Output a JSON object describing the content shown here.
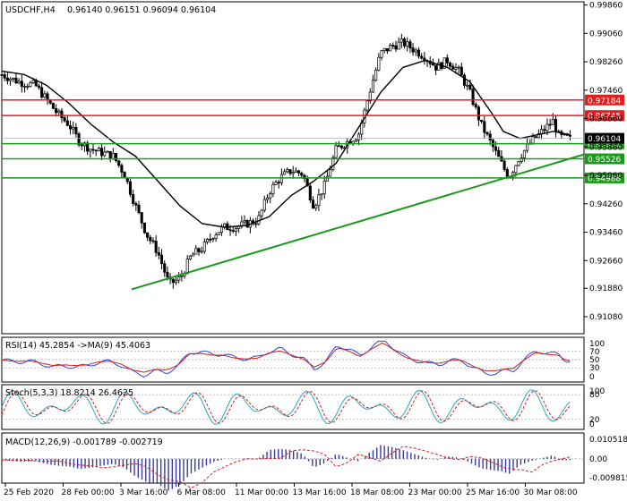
{
  "chart_data": {
    "type": "candlestick",
    "symbol_label": "USDCHF,H4",
    "ohlc_label": "0.96140 0.96151 0.96094 0.96104",
    "price_axis": {
      "range": [
        0.906,
        0.9995
      ],
      "ticks": [
        "0.99860",
        "0.99060",
        "0.98260",
        "0.97460",
        "0.96660",
        "0.95860",
        "0.95060",
        "0.94260",
        "0.93460",
        "0.92660",
        "0.91880",
        "0.91080"
      ]
    },
    "x_axis": {
      "labels": [
        "25 Feb 2020",
        "28 Feb 00:00",
        "3 Mar 16:00",
        "6 Mar 08:00",
        "11 Mar 00:00",
        "13 Mar 16:00",
        "18 Mar 08:00",
        "23 Mar 00:00",
        "25 Mar 16:00",
        "30 Mar 08:00"
      ]
    },
    "horizontal_levels": [
      {
        "value": 0.97184,
        "label": "0.97184",
        "color": "#e02020"
      },
      {
        "value": 0.96745,
        "label": "0.96745",
        "color": "#e02020"
      },
      {
        "value": 0.95951,
        "label": "0.95951",
        "color": "#1a9a1a"
      },
      {
        "value": 0.95526,
        "label": "0.95526",
        "color": "#1a9a1a"
      },
      {
        "value": 0.94988,
        "label": "0.94988",
        "color": "#1a9a1a"
      }
    ],
    "current_price": {
      "value": 0.96104,
      "label": "0.96104"
    },
    "trendline": {
      "color": "#1a9a1a",
      "from": [
        0.217,
        0.9185
      ],
      "to": [
        1.0,
        0.9565
      ]
    },
    "close_path": [
      [
        0.0,
        0.979
      ],
      [
        0.03,
        0.977
      ],
      [
        0.06,
        0.976
      ],
      [
        0.08,
        0.972
      ],
      [
        0.1,
        0.968
      ],
      [
        0.12,
        0.965
      ],
      [
        0.14,
        0.96
      ],
      [
        0.16,
        0.958
      ],
      [
        0.18,
        0.957
      ],
      [
        0.2,
        0.956
      ],
      [
        0.22,
        0.951
      ],
      [
        0.24,
        0.942
      ],
      [
        0.26,
        0.934
      ],
      [
        0.28,
        0.929
      ],
      [
        0.3,
        0.92
      ],
      [
        0.32,
        0.9215
      ],
      [
        0.34,
        0.928
      ],
      [
        0.36,
        0.93
      ],
      [
        0.38,
        0.934
      ],
      [
        0.4,
        0.936
      ],
      [
        0.42,
        0.936
      ],
      [
        0.44,
        0.937
      ],
      [
        0.46,
        0.938
      ],
      [
        0.48,
        0.946
      ],
      [
        0.5,
        0.95
      ],
      [
        0.52,
        0.952
      ],
      [
        0.54,
        0.951
      ],
      [
        0.56,
        0.942
      ],
      [
        0.58,
        0.948
      ],
      [
        0.6,
        0.958
      ],
      [
        0.62,
        0.96
      ],
      [
        0.64,
        0.962
      ],
      [
        0.66,
        0.974
      ],
      [
        0.68,
        0.985
      ],
      [
        0.7,
        0.987
      ],
      [
        0.72,
        0.988
      ],
      [
        0.74,
        0.986
      ],
      [
        0.76,
        0.984
      ],
      [
        0.78,
        0.981
      ],
      [
        0.8,
        0.983
      ],
      [
        0.82,
        0.98
      ],
      [
        0.84,
        0.974
      ],
      [
        0.86,
        0.965
      ],
      [
        0.88,
        0.959
      ],
      [
        0.9,
        0.953
      ],
      [
        0.91,
        0.95
      ],
      [
        0.93,
        0.956
      ],
      [
        0.95,
        0.96
      ],
      [
        0.97,
        0.963
      ],
      [
        0.99,
        0.966
      ],
      [
        1.0,
        0.9615
      ],
      [
        1.02,
        0.961
      ]
    ],
    "sma_path": [
      [
        0.0,
        0.98
      ],
      [
        0.04,
        0.979
      ],
      [
        0.08,
        0.976
      ],
      [
        0.12,
        0.971
      ],
      [
        0.16,
        0.965
      ],
      [
        0.2,
        0.96
      ],
      [
        0.24,
        0.956
      ],
      [
        0.28,
        0.949
      ],
      [
        0.32,
        0.942
      ],
      [
        0.36,
        0.937
      ],
      [
        0.4,
        0.936
      ],
      [
        0.44,
        0.9365
      ],
      [
        0.48,
        0.939
      ],
      [
        0.52,
        0.945
      ],
      [
        0.56,
        0.949
      ],
      [
        0.6,
        0.954
      ],
      [
        0.64,
        0.964
      ],
      [
        0.68,
        0.974
      ],
      [
        0.72,
        0.981
      ],
      [
        0.76,
        0.983
      ],
      [
        0.8,
        0.981
      ],
      [
        0.84,
        0.977
      ],
      [
        0.88,
        0.968
      ],
      [
        0.9,
        0.963
      ],
      [
        0.93,
        0.961
      ],
      [
        0.96,
        0.962
      ],
      [
        0.99,
        0.963
      ],
      [
        1.02,
        0.962
      ]
    ],
    "rsi": {
      "label": "RSI(14) 45.2854 ->MA(9) 45.4063",
      "ticks": [
        "100",
        "70",
        "50",
        "30",
        "0"
      ],
      "levels": [
        100,
        70,
        50,
        30,
        0
      ],
      "range": [
        0,
        100
      ]
    },
    "stoch": {
      "label": "Stoch(5,3,3) 18.8214 26.4625",
      "ticks": [
        "100",
        "80",
        "20",
        "0"
      ],
      "levels": [
        100,
        80,
        20,
        0
      ],
      "range": [
        0,
        100
      ]
    },
    "macd": {
      "label": "MACD(12,26,9) -0.001789 -0.002719",
      "ticks": [
        "0.010518",
        "0.00",
        "-0.009815"
      ],
      "range": [
        -0.009815,
        0.010518
      ]
    },
    "colors": {
      "candle": "#000000",
      "ma": "#000000",
      "rsi_line": "#2a4bd7",
      "rsi_ma": "#d41e1e",
      "stoch_main": "#2aa6c8",
      "stoch_signal": "#d41e1e",
      "macd_hist": "#3a3a9e",
      "macd_signal": "#d41e1e"
    }
  }
}
